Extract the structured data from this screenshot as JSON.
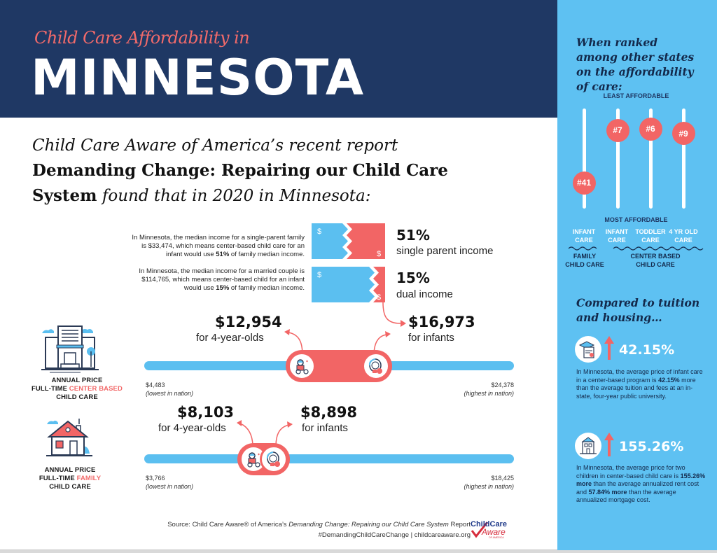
{
  "header": {
    "subtitle": "Child Care Affordability in",
    "title": "MINNESOTA"
  },
  "intro": {
    "line1": "Child Care Aware of America’s recent report",
    "line2": "Demanding Change: Repairing our Child Care",
    "line3_bold": "System",
    "line3_italic": " found that in 2020 in Minnesota:"
  },
  "income": {
    "single": {
      "text_before": "In Minnesota, the median income for a single-parent family is $33,474, which means center-based child care for an infant would use ",
      "bold": "51%",
      "text_after": " of family median income.",
      "percent": "51%",
      "label": "single parent income",
      "share": 0.51
    },
    "dual": {
      "text_before": "In Minnesota, the median income for a married couple is $114,765, which means center-based child for an infant would use ",
      "bold": "15%",
      "text_after": " of family median income.",
      "percent": "15%",
      "label": "dual income",
      "share": 0.15
    },
    "currency_symbol": "$"
  },
  "center_based": {
    "label_line1": "ANNUAL PRICE",
    "label_line2_prefix": "FULL-TIME ",
    "label_line2_highlight": "CENTER BASED",
    "label_line3": "CHILD CARE",
    "four_year_price": "$12,954",
    "four_year_label": "for 4-year-olds",
    "infant_price": "$16,973",
    "infant_label": "for infants",
    "min_value": "$4,483",
    "min_label": "(lowest in nation)",
    "max_value": "$24,378",
    "max_label": "(highest in nation)",
    "range": [
      4483,
      24378
    ],
    "values": [
      12954,
      16973
    ]
  },
  "family": {
    "label_line1": "ANNUAL PRICE",
    "label_line2_prefix": "FULL-TIME ",
    "label_line2_highlight": "FAMILY",
    "label_line3": "CHILD CARE",
    "four_year_price": "$8,103",
    "four_year_label": "for 4-year-olds",
    "infant_price": "$8,898",
    "infant_label": "for infants",
    "min_value": "$3,766",
    "min_label": "(lowest in nation)",
    "max_value": "$18,425",
    "max_label": "(highest in nation)",
    "range": [
      3766,
      18425
    ],
    "values": [
      8103,
      8898
    ]
  },
  "footer": {
    "source_prefix": "Source: Child Care Aware® of America’s ",
    "source_italic": "Demanding Change: Repairing our Child Care System",
    "source_suffix": " Report",
    "line2": "#DemandingChildCareChange | childcareaware.org",
    "logo_line1": "ChildCare",
    "logo_line2": "Aware",
    "logo_line3": "OF AMERICA"
  },
  "side": {
    "rank_heading": "When ranked among other states on the affordability of care:",
    "least": "LEAST AFFORDABLE",
    "most": "MOST AFFORDABLE",
    "ranks": [
      {
        "label": "#41",
        "rank": 41,
        "col_line1": "INFANT",
        "col_line2": "CARE"
      },
      {
        "label": "#7",
        "rank": 7,
        "col_line1": "INFANT",
        "col_line2": "CARE"
      },
      {
        "label": "#6",
        "rank": 6,
        "col_line1": "TODDLER",
        "col_line2": "CARE"
      },
      {
        "label": "#9",
        "rank": 9,
        "col_line1": "4 YR OLD",
        "col_line2": "CARE"
      }
    ],
    "group_family_1": "FAMILY",
    "group_family_2": "CHILD CARE",
    "group_center_1": "CENTER BASED",
    "group_center_2": "CHILD CARE",
    "compare_heading": "Compared to tuition and housing…",
    "tuition": {
      "percent": "42.15%",
      "text_before": "In Minnesota, the average price of infant care in a center-based program is ",
      "bold": "42.15%",
      "text_after": " more than the average tuition and fees at an in-state, four-year public university."
    },
    "housing": {
      "percent": "155.26%",
      "text_before": "In Minnesota, the average price for two children in center-based child care is ",
      "bold1": "155.26% more",
      "text_mid": " than the average annualized rent cost and ",
      "bold2": "57.84% more",
      "text_after": " than the average annualized mortgage cost."
    }
  },
  "colors": {
    "navy": "#1f3864",
    "coral": "#f26565",
    "sky": "#5ec1f2",
    "bar_blue": "#5bbff0"
  }
}
